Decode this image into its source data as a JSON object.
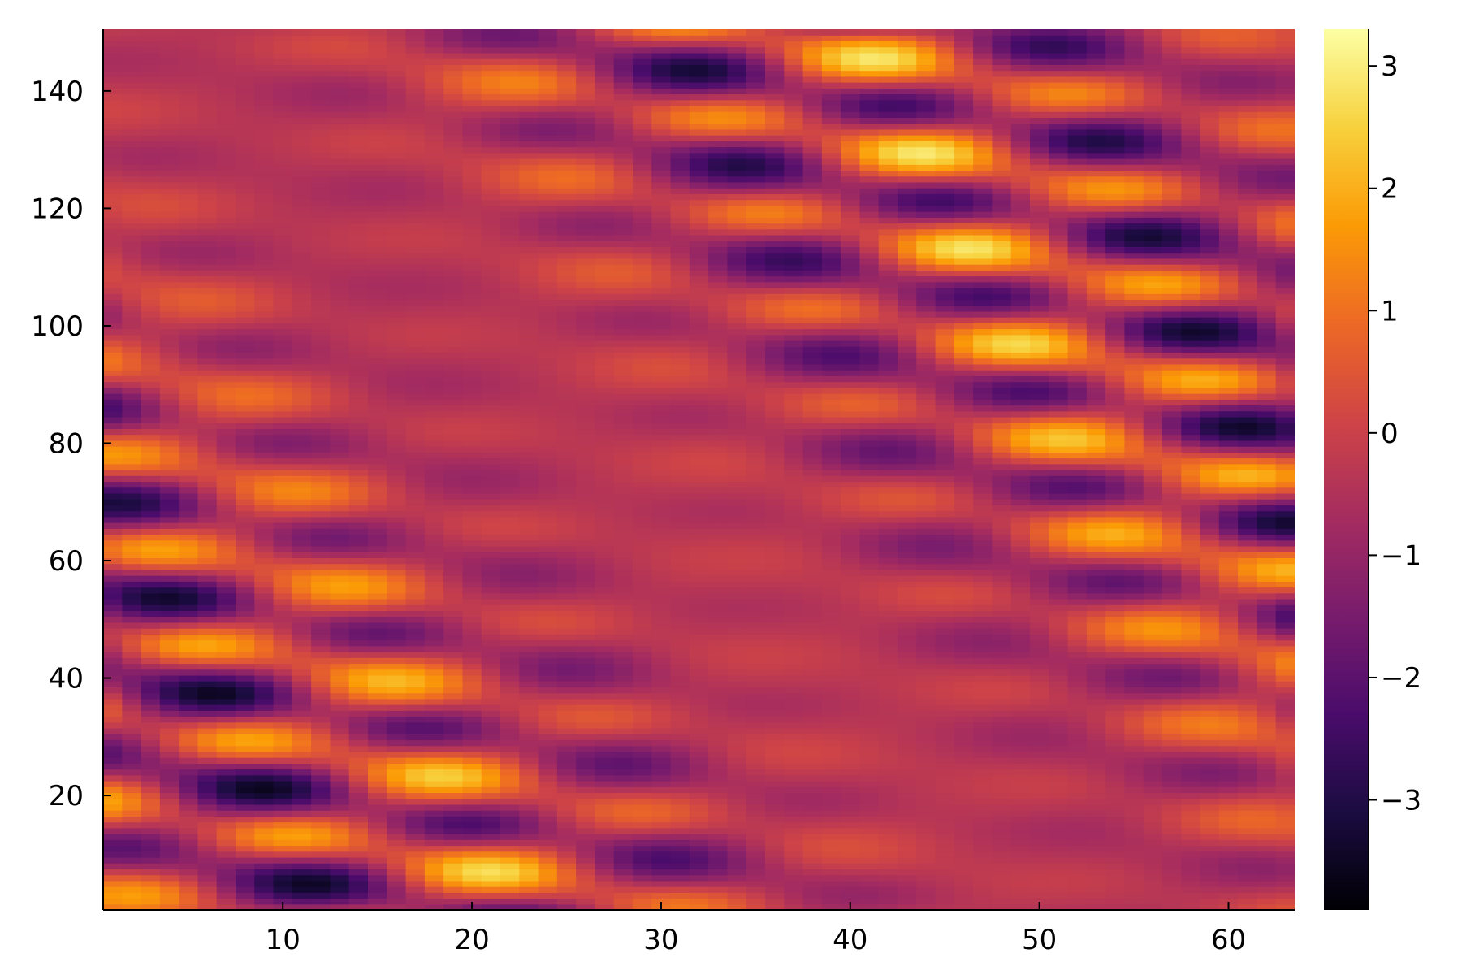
{
  "chart_data": {
    "type": "heatmap",
    "title": "",
    "xlabel": "",
    "ylabel": "",
    "x_range": [
      0.5,
      63.5
    ],
    "y_range": [
      0.5,
      150.5
    ],
    "x_ticks": [
      "10",
      "20",
      "30",
      "40",
      "50",
      "60"
    ],
    "x_tick_values": [
      10,
      20,
      30,
      40,
      50,
      60
    ],
    "y_ticks": [
      "20",
      "40",
      "60",
      "80",
      "100",
      "120",
      "140"
    ],
    "y_tick_values": [
      20,
      40,
      60,
      80,
      100,
      120,
      140
    ],
    "nx": 63,
    "ny": 150,
    "colorbar": {
      "range": [
        -3.9,
        3.3
      ],
      "ticks": [
        "−3",
        "−2",
        "−1",
        "0",
        "1",
        "2",
        "3"
      ],
      "tick_values": [
        -3,
        -2,
        -1,
        0,
        1,
        2,
        3
      ],
      "colormap": "inferno"
    },
    "grid": false,
    "description_of_values": "Smooth wave field, values ranging about -3.9 to 3.3 with many crossing diagonal wave bands (soliton-like interactions)."
  },
  "colors": {
    "background": "#ffffff",
    "axis": "#000000",
    "colormap": [
      "#000004",
      "#1b0c41",
      "#4a0c6b",
      "#781c6d",
      "#a52c60",
      "#cf4446",
      "#ed6925",
      "#fb9b06",
      "#f7d13d",
      "#fcffa4"
    ]
  }
}
